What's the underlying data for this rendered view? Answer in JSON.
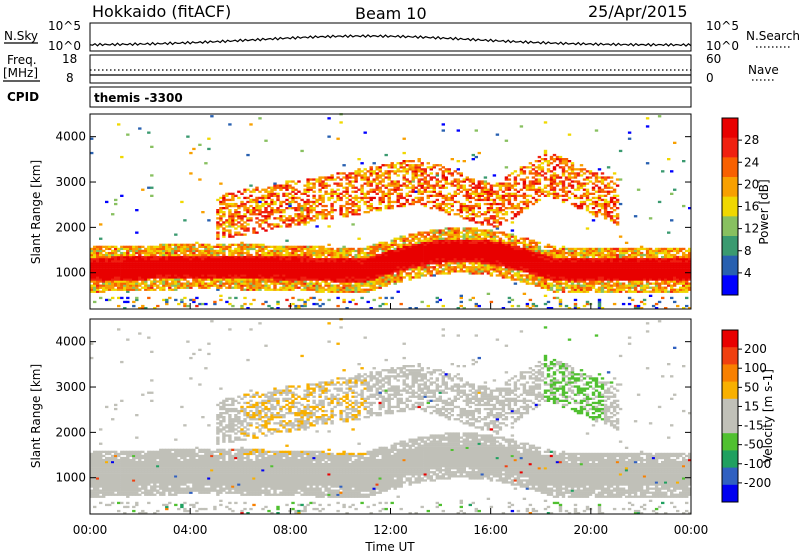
{
  "header": {
    "title": "Hokkaido (fitACF)",
    "beam": "Beam 10",
    "date": "25/Apr/2015"
  },
  "top_panels": {
    "nsky_label": "N.Sky",
    "nsky_ticks": [
      "10^5",
      "10^0"
    ],
    "nsearch_label": "N.Search",
    "nsearch_ticks": [
      "10^5",
      "10^0"
    ],
    "freq_label_1": "Freq.",
    "freq_label_2": "[MHz]",
    "freq_ticks": [
      "18",
      "8"
    ],
    "nave_label": "Nave",
    "nave_ticks": [
      "60",
      "0"
    ],
    "cpid_label": "CPID",
    "cpid_value": "themis -3300"
  },
  "colors": {
    "power_scale": [
      "#0000ff",
      "#2860b0",
      "#3a9a70",
      "#88c060",
      "#f0d800",
      "#f8a000",
      "#f86000",
      "#f02010",
      "#e80000"
    ],
    "velocity_scale": [
      "#e80000",
      "#f04010",
      "#f88000",
      "#f8b000",
      "#c0c0b8",
      "#c0c0b8",
      "#50c030",
      "#20a060",
      "#3060c0",
      "#0000f0"
    ],
    "ground_scatter": "#c0c0b8"
  },
  "chart_data": [
    {
      "type": "heatmap",
      "name": "power",
      "xlabel": "",
      "ylabel": "Slant Range [km]",
      "x_ticks": [
        "00:00",
        "04:00",
        "08:00",
        "12:00",
        "16:00",
        "20:00",
        "00:00"
      ],
      "y_ticks": [
        "1000",
        "2000",
        "3000",
        "4000"
      ],
      "xlim": [
        0,
        24
      ],
      "ylim": [
        200,
        4500
      ],
      "colorbar": {
        "label": "Power [dB]",
        "ticks": [
          "4",
          "8",
          "12",
          "16",
          "20",
          "24",
          "28"
        ],
        "range": [
          0,
          30
        ]
      }
    },
    {
      "type": "heatmap",
      "name": "velocity",
      "xlabel": "Time UT",
      "ylabel": "Slant Range [km]",
      "x_ticks": [
        "00:00",
        "04:00",
        "08:00",
        "12:00",
        "16:00",
        "20:00",
        "00:00"
      ],
      "y_ticks": [
        "1000",
        "2000",
        "3000",
        "4000"
      ],
      "xlim": [
        0,
        24
      ],
      "ylim": [
        200,
        4500
      ],
      "colorbar": {
        "label": "Velocity [m s-1]",
        "ticks": [
          "200",
          "100",
          "50",
          "15",
          "-15",
          "-50",
          "-100",
          "-200"
        ],
        "range": [
          -250,
          250
        ]
      }
    }
  ]
}
